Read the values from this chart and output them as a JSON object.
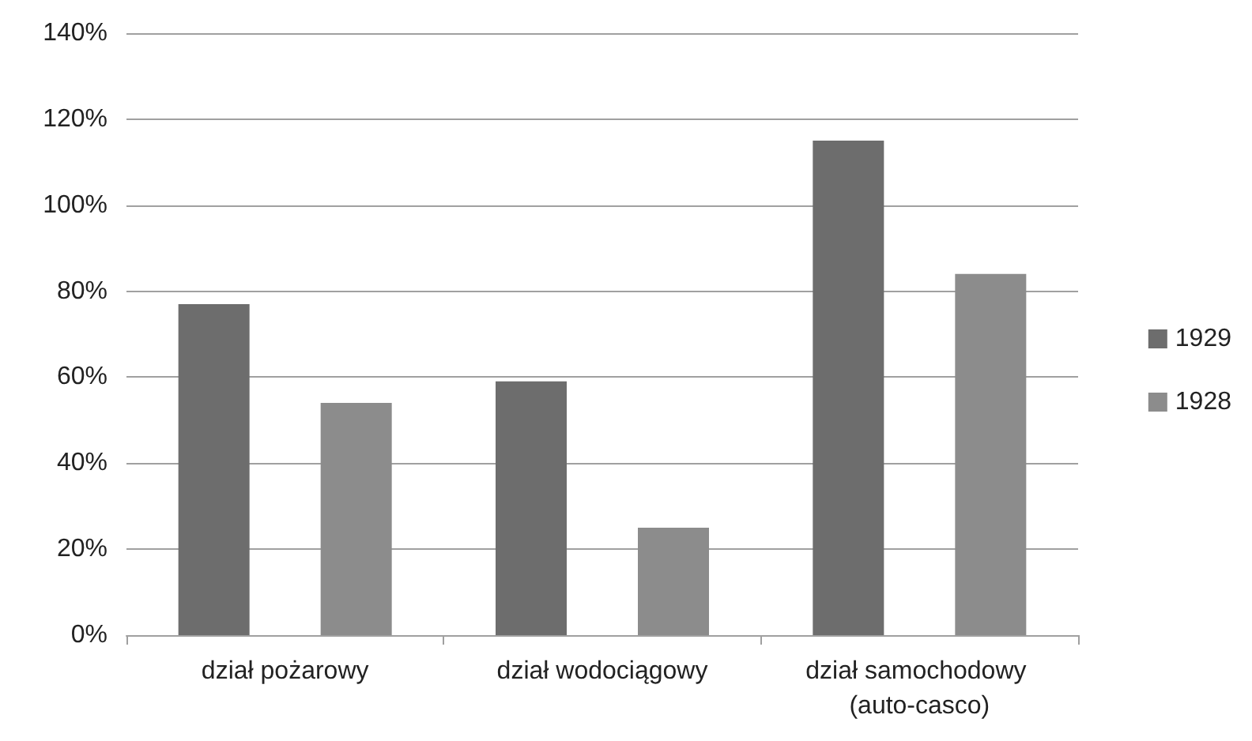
{
  "chart_data": {
    "type": "bar",
    "categories": [
      "dział pożarowy",
      "dział wodociągowy",
      "dział samochodowy (auto-casco)"
    ],
    "series": [
      {
        "name": "1929",
        "color": "#6d6d6d",
        "values": [
          77,
          59,
          115
        ]
      },
      {
        "name": "1928",
        "color": "#8c8c8c",
        "values": [
          54,
          25,
          84
        ]
      }
    ],
    "ylim": [
      0,
      140
    ],
    "yticks": [
      {
        "value": 0,
        "label": "0%"
      },
      {
        "value": 20,
        "label": "20%"
      },
      {
        "value": 40,
        "label": "40%"
      },
      {
        "value": 60,
        "label": "60%"
      },
      {
        "value": 80,
        "label": "80%"
      },
      {
        "value": 100,
        "label": "100%"
      },
      {
        "value": 120,
        "label": "120%"
      },
      {
        "value": 140,
        "label": "140%"
      }
    ],
    "grid": "y",
    "legend": "right"
  }
}
